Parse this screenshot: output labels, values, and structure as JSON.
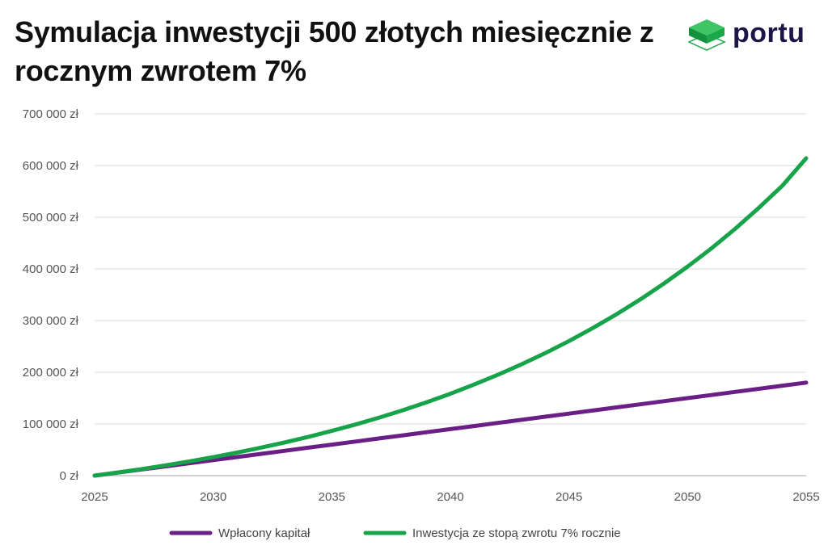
{
  "title": "Symulacja inwestycji 500 złotych miesięcznie z rocznym zwrotem 7%",
  "brand": {
    "name": "portu",
    "logo_icon": "cube-icon",
    "accent": "#1aa84a",
    "text_color": "#1f1446"
  },
  "chart_data": {
    "type": "line",
    "title": "Symulacja inwestycji 500 złotych miesięcznie z rocznym zwrotem 7%",
    "xlabel": "",
    "ylabel": "",
    "xlim": [
      2025,
      2055
    ],
    "ylim": [
      0,
      700000
    ],
    "x_ticks": [
      "2025",
      "2030",
      "2035",
      "2040",
      "2045",
      "2050",
      "2055"
    ],
    "y_ticks": [
      "0 zł",
      "100 000 zł",
      "200 000 zł",
      "300 000 zł",
      "400 000 zł",
      "500 000 zł",
      "600 000 zł",
      "700 000 zł"
    ],
    "grid": "horizontal",
    "legend_position": "bottom",
    "x": [
      2025,
      2026,
      2027,
      2028,
      2029,
      2030,
      2031,
      2032,
      2033,
      2034,
      2035,
      2036,
      2037,
      2038,
      2039,
      2040,
      2041,
      2042,
      2043,
      2044,
      2045,
      2046,
      2047,
      2048,
      2049,
      2050,
      2051,
      2052,
      2053,
      2054,
      2055
    ],
    "series": [
      {
        "name": "Wpłacony kapitał",
        "color": "#6a1f86",
        "values": [
          0,
          6000,
          12000,
          18000,
          24000,
          30000,
          36000,
          42000,
          48000,
          54000,
          60000,
          66000,
          72000,
          78000,
          84000,
          90000,
          96000,
          102000,
          108000,
          114000,
          120000,
          126000,
          132000,
          138000,
          144000,
          150000,
          156000,
          162000,
          168000,
          174000,
          180000
        ]
      },
      {
        "name": "Inwestycja ze stopą zwrotu 7% rocznie",
        "color": "#16a34a",
        "values": [
          0,
          6200,
          12800,
          20000,
          27600,
          35800,
          44600,
          54000,
          64000,
          74800,
          86500,
          98900,
          112300,
          126600,
          142000,
          158500,
          176200,
          195100,
          215400,
          237100,
          260400,
          285400,
          312100,
          340800,
          371500,
          404400,
          439600,
          477400,
          517900,
          561200,
          614000
        ]
      }
    ]
  }
}
